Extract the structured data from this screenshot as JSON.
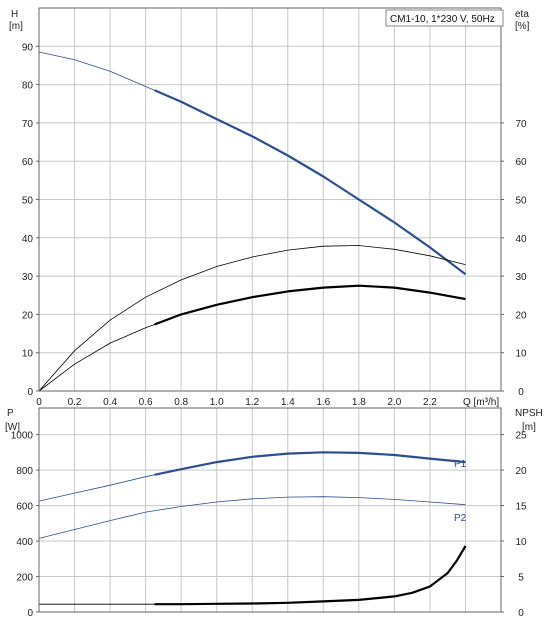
{
  "chart_data": [
    {
      "type": "line",
      "title": "CM1-10, 1*230 V, 50Hz",
      "xlabel": "Q [m³/h]",
      "ylabel": "H",
      "ylabel_unit": "[m]",
      "y2label": "eta",
      "y2label_unit": "[%]",
      "xlim": [
        0,
        2.6
      ],
      "ylim": [
        0,
        100
      ],
      "y2lim": [
        0,
        100
      ],
      "x_ticks": [
        "0",
        "0.2",
        "0.4",
        "0.6",
        "0.8",
        "1.0",
        "1.2",
        "1.4",
        "1.6",
        "1.8",
        "2.0",
        "2.2"
      ],
      "y_ticks": [
        "0",
        "10",
        "20",
        "30",
        "40",
        "50",
        "60",
        "70",
        "80",
        "90"
      ],
      "y2_ticks": [
        "0",
        "10",
        "20",
        "30",
        "40",
        "50",
        "60",
        "70"
      ],
      "grid": true,
      "colors": {
        "head": "#2c4f8f",
        "eta": "#000000"
      },
      "series": [
        {
          "key": "head",
          "axis": "left",
          "x": [
            0,
            0.2,
            0.4,
            0.6,
            0.8,
            1.0,
            1.2,
            1.4,
            1.6,
            1.8,
            2.0,
            2.2,
            2.4
          ],
          "values": [
            88.5,
            86.5,
            83.5,
            79.5,
            75.5,
            71,
            66.5,
            61.5,
            56,
            50,
            44,
            37.5,
            30.5
          ],
          "thin_until": 0.65
        },
        {
          "key": "eta-thin",
          "axis": "right",
          "x": [
            0,
            0.2,
            0.4,
            0.6,
            0.8,
            1.0,
            1.2,
            1.4,
            1.6,
            1.8,
            2.0,
            2.2,
            2.4
          ],
          "values": [
            0,
            10.5,
            18.5,
            24.5,
            29,
            32.5,
            35,
            36.8,
            37.8,
            38,
            37,
            35.3,
            33
          ],
          "thin_until": 2.4
        },
        {
          "key": "eta-thick",
          "axis": "right",
          "x": [
            0,
            0.2,
            0.4,
            0.6,
            0.8,
            1.0,
            1.2,
            1.4,
            1.6,
            1.8,
            2.0,
            2.2,
            2.4
          ],
          "values": [
            0,
            7,
            12.5,
            16.5,
            20,
            22.5,
            24.5,
            26,
            27,
            27.5,
            27,
            25.7,
            24
          ],
          "thin_until": 0.65
        }
      ]
    },
    {
      "type": "line",
      "xlim": [
        0,
        2.6
      ],
      "ylabel": "P",
      "ylabel_unit": "[W]",
      "y2label": "NPSH",
      "y2label_unit": "[m]",
      "ylim": [
        0,
        1150
      ],
      "y2lim": [
        0,
        28.75
      ],
      "y_ticks": [
        "0",
        "200",
        "400",
        "600",
        "800",
        "1000"
      ],
      "y2_ticks": [
        "0",
        "5",
        "10",
        "15",
        "20",
        "25"
      ],
      "grid": true,
      "colors": {
        "power": "#2c4f8f",
        "npsh": "#000000"
      },
      "series": [
        {
          "name": "P1",
          "axis": "left",
          "x": [
            0,
            0.2,
            0.4,
            0.6,
            0.8,
            1.0,
            1.2,
            1.4,
            1.6,
            1.8,
            2.0,
            2.2,
            2.4
          ],
          "values": [
            625,
            670,
            715,
            763,
            805,
            845,
            875,
            893,
            900,
            897,
            885,
            865,
            845
          ],
          "thin_until": 0.65
        },
        {
          "name": "P2",
          "axis": "left",
          "x": [
            0,
            0.2,
            0.4,
            0.6,
            0.8,
            1.0,
            1.2,
            1.4,
            1.6,
            1.8,
            2.0,
            2.2,
            2.4
          ],
          "values": [
            415,
            465,
            515,
            563,
            595,
            620,
            638,
            648,
            650,
            645,
            635,
            620,
            605
          ],
          "thin_until": 2.4
        },
        {
          "key": "npsh",
          "axis": "right",
          "x": [
            0,
            0.65,
            0.8,
            1.0,
            1.2,
            1.4,
            1.6,
            1.8,
            2.0,
            2.1,
            2.2,
            2.3,
            2.35,
            2.4
          ],
          "values": [
            1.1,
            1.1,
            1.1,
            1.15,
            1.2,
            1.3,
            1.5,
            1.7,
            2.2,
            2.7,
            3.6,
            5.5,
            7.2,
            9.3
          ],
          "thin_until": 0.65
        }
      ]
    }
  ]
}
